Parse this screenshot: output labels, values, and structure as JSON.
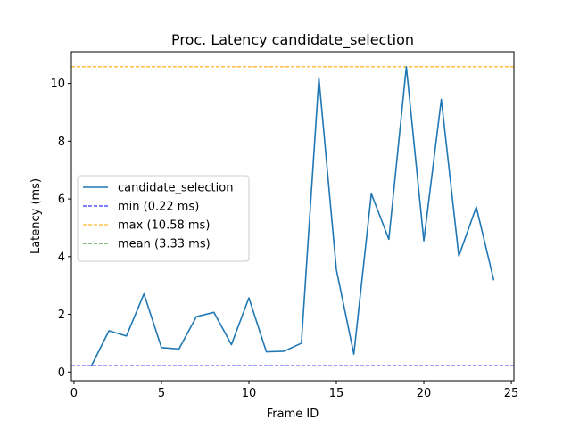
{
  "chart_data": {
    "type": "line",
    "title": "Proc. Latency candidate_selection",
    "xlabel": "Frame ID",
    "ylabel": "Latency (ms)",
    "xlim": [
      -0.15,
      25.15
    ],
    "ylim": [
      -0.3,
      11.1
    ],
    "xticks": [
      0,
      5,
      10,
      15,
      20,
      25
    ],
    "yticks": [
      0,
      2,
      4,
      6,
      8,
      10
    ],
    "grid": false,
    "legend_position": "center-left",
    "series": [
      {
        "name": "candidate_selection",
        "color": "#1f77b4",
        "style": "solid",
        "x": [
          1,
          2,
          3,
          4,
          5,
          6,
          7,
          8,
          9,
          10,
          11,
          12,
          13,
          14,
          15,
          16,
          17,
          18,
          19,
          20,
          21,
          22,
          23,
          24
        ],
        "y": [
          0.22,
          1.43,
          1.25,
          2.71,
          0.85,
          0.8,
          1.92,
          2.07,
          0.95,
          2.57,
          0.7,
          0.72,
          1.0,
          10.2,
          3.55,
          0.62,
          6.18,
          4.6,
          10.58,
          4.55,
          9.45,
          4.02,
          5.72,
          3.18
        ]
      }
    ],
    "reference_lines": [
      {
        "name": "min (0.22 ms)",
        "value": 0.22,
        "color": "#0000ff",
        "style": "dashed"
      },
      {
        "name": "max (10.58 ms)",
        "value": 10.58,
        "color": "#ffa500",
        "style": "dashed"
      },
      {
        "name": "mean (3.33 ms)",
        "value": 3.33,
        "color": "#008000",
        "style": "dashed"
      }
    ]
  }
}
